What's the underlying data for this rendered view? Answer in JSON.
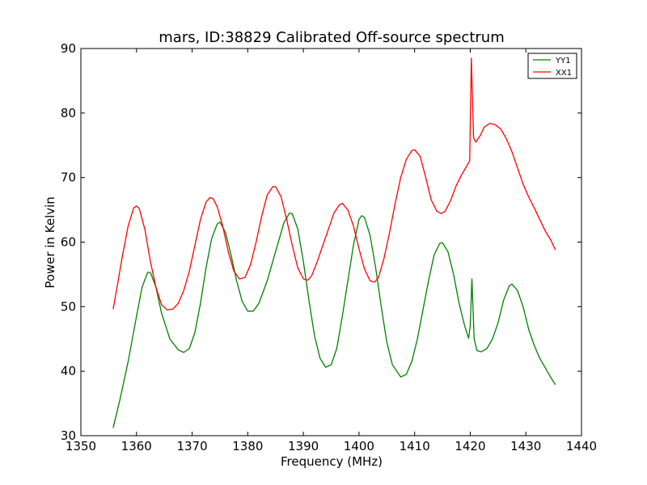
{
  "chart_data": {
    "type": "line",
    "title": "mars, ID:38829 Calibrated Off-source spectrum",
    "xlabel": "Frequency (MHz)",
    "ylabel": "Power in Kelvin",
    "xlim": [
      1350,
      1440
    ],
    "ylim": [
      30,
      90
    ],
    "xticks": [
      1350,
      1360,
      1370,
      1380,
      1390,
      1400,
      1410,
      1420,
      1430,
      1440
    ],
    "yticks": [
      30,
      40,
      50,
      60,
      70,
      80,
      90
    ],
    "grid": false,
    "legend_position": "top-right",
    "series": [
      {
        "name": "YY1",
        "color": "#008000",
        "points": [
          [
            1355.8,
            31.2
          ],
          [
            1357.0,
            35.5
          ],
          [
            1358.5,
            41.5
          ],
          [
            1360.0,
            48.5
          ],
          [
            1361.0,
            53.0
          ],
          [
            1362.0,
            55.3
          ],
          [
            1362.5,
            55.3
          ],
          [
            1363.5,
            53.0
          ],
          [
            1364.5,
            49.0
          ],
          [
            1366.0,
            45.0
          ],
          [
            1367.5,
            43.3
          ],
          [
            1368.5,
            42.9
          ],
          [
            1369.5,
            43.5
          ],
          [
            1370.5,
            46.0
          ],
          [
            1371.5,
            50.5
          ],
          [
            1372.5,
            56.0
          ],
          [
            1373.5,
            60.5
          ],
          [
            1374.5,
            62.8
          ],
          [
            1375.0,
            63.1
          ],
          [
            1376.0,
            61.5
          ],
          [
            1377.0,
            58.0
          ],
          [
            1378.0,
            54.0
          ],
          [
            1379.0,
            50.8
          ],
          [
            1380.0,
            49.3
          ],
          [
            1381.0,
            49.3
          ],
          [
            1382.0,
            50.5
          ],
          [
            1383.5,
            54.0
          ],
          [
            1385.0,
            58.5
          ],
          [
            1386.5,
            63.0
          ],
          [
            1387.5,
            64.5
          ],
          [
            1388.0,
            64.4
          ],
          [
            1389.0,
            62.0
          ],
          [
            1390.0,
            57.0
          ],
          [
            1391.0,
            51.0
          ],
          [
            1392.0,
            45.5
          ],
          [
            1393.0,
            42.0
          ],
          [
            1394.0,
            40.6
          ],
          [
            1395.0,
            41.0
          ],
          [
            1396.0,
            43.5
          ],
          [
            1397.0,
            48.5
          ],
          [
            1398.0,
            54.0
          ],
          [
            1399.0,
            59.5
          ],
          [
            1400.0,
            63.5
          ],
          [
            1400.5,
            64.1
          ],
          [
            1401.0,
            63.8
          ],
          [
            1402.0,
            61.0
          ],
          [
            1403.0,
            56.0
          ],
          [
            1404.0,
            50.0
          ],
          [
            1405.0,
            44.5
          ],
          [
            1406.0,
            41.0
          ],
          [
            1407.5,
            39.1
          ],
          [
            1408.5,
            39.5
          ],
          [
            1409.5,
            41.5
          ],
          [
            1410.5,
            45.0
          ],
          [
            1411.5,
            49.5
          ],
          [
            1412.5,
            54.0
          ],
          [
            1413.5,
            58.0
          ],
          [
            1414.5,
            59.8
          ],
          [
            1415.0,
            59.9
          ],
          [
            1416.0,
            58.5
          ],
          [
            1417.0,
            55.0
          ],
          [
            1418.0,
            50.5
          ],
          [
            1419.0,
            47.0
          ],
          [
            1419.7,
            45.1
          ],
          [
            1420.0,
            47.0
          ],
          [
            1420.3,
            54.3
          ],
          [
            1420.7,
            45.0
          ],
          [
            1421.2,
            43.2
          ],
          [
            1422.0,
            43.0
          ],
          [
            1423.0,
            43.5
          ],
          [
            1424.0,
            45.0
          ],
          [
            1425.0,
            47.5
          ],
          [
            1426.0,
            51.0
          ],
          [
            1427.0,
            53.2
          ],
          [
            1427.5,
            53.5
          ],
          [
            1428.5,
            52.5
          ],
          [
            1429.5,
            50.0
          ],
          [
            1430.5,
            46.5
          ],
          [
            1431.5,
            44.0
          ],
          [
            1432.5,
            42.0
          ],
          [
            1433.5,
            40.5
          ],
          [
            1434.5,
            39.0
          ],
          [
            1435.3,
            37.9
          ]
        ]
      },
      {
        "name": "XX1",
        "color": "#ff0000",
        "points": [
          [
            1355.8,
            49.6
          ],
          [
            1356.5,
            53.0
          ],
          [
            1357.5,
            58.0
          ],
          [
            1358.5,
            62.5
          ],
          [
            1359.5,
            65.3
          ],
          [
            1360.0,
            65.6
          ],
          [
            1360.5,
            65.2
          ],
          [
            1361.5,
            62.0
          ],
          [
            1362.5,
            57.0
          ],
          [
            1363.5,
            53.0
          ],
          [
            1364.5,
            50.3
          ],
          [
            1365.5,
            49.5
          ],
          [
            1366.5,
            49.6
          ],
          [
            1367.5,
            50.5
          ],
          [
            1368.5,
            52.5
          ],
          [
            1369.5,
            55.5
          ],
          [
            1370.5,
            59.5
          ],
          [
            1371.5,
            63.5
          ],
          [
            1372.5,
            66.2
          ],
          [
            1373.2,
            66.9
          ],
          [
            1373.8,
            66.7
          ],
          [
            1374.5,
            65.5
          ],
          [
            1375.5,
            62.5
          ],
          [
            1376.5,
            58.5
          ],
          [
            1377.5,
            55.5
          ],
          [
            1378.5,
            54.3
          ],
          [
            1379.5,
            54.5
          ],
          [
            1380.5,
            56.5
          ],
          [
            1381.5,
            60.0
          ],
          [
            1382.5,
            64.0
          ],
          [
            1383.5,
            67.3
          ],
          [
            1384.5,
            68.6
          ],
          [
            1385.0,
            68.6
          ],
          [
            1386.0,
            67.0
          ],
          [
            1387.0,
            63.5
          ],
          [
            1388.0,
            59.5
          ],
          [
            1389.0,
            56.0
          ],
          [
            1390.0,
            54.3
          ],
          [
            1390.8,
            54.1
          ],
          [
            1391.5,
            54.8
          ],
          [
            1392.5,
            57.0
          ],
          [
            1393.5,
            59.5
          ],
          [
            1394.5,
            62.0
          ],
          [
            1395.5,
            64.5
          ],
          [
            1396.5,
            65.8
          ],
          [
            1397.0,
            66.0
          ],
          [
            1398.0,
            65.0
          ],
          [
            1399.0,
            62.5
          ],
          [
            1400.0,
            59.0
          ],
          [
            1401.0,
            55.8
          ],
          [
            1402.0,
            54.0
          ],
          [
            1402.8,
            53.8
          ],
          [
            1403.5,
            54.5
          ],
          [
            1404.5,
            57.5
          ],
          [
            1405.5,
            61.5
          ],
          [
            1406.5,
            66.0
          ],
          [
            1407.5,
            70.0
          ],
          [
            1408.5,
            72.8
          ],
          [
            1409.5,
            74.2
          ],
          [
            1410.0,
            74.3
          ],
          [
            1411.0,
            73.3
          ],
          [
            1412.0,
            70.0
          ],
          [
            1413.0,
            66.5
          ],
          [
            1414.0,
            64.8
          ],
          [
            1414.8,
            64.4
          ],
          [
            1415.5,
            64.8
          ],
          [
            1416.5,
            66.5
          ],
          [
            1417.5,
            68.8
          ],
          [
            1418.5,
            70.5
          ],
          [
            1419.5,
            72.0
          ],
          [
            1419.9,
            72.6
          ],
          [
            1420.2,
            88.5
          ],
          [
            1420.6,
            76.2
          ],
          [
            1421.0,
            75.5
          ],
          [
            1421.8,
            76.5
          ],
          [
            1422.5,
            77.8
          ],
          [
            1423.5,
            78.4
          ],
          [
            1424.5,
            78.2
          ],
          [
            1425.5,
            77.5
          ],
          [
            1426.5,
            76.0
          ],
          [
            1427.5,
            74.0
          ],
          [
            1428.5,
            71.5
          ],
          [
            1429.5,
            69.0
          ],
          [
            1430.5,
            67.0
          ],
          [
            1431.5,
            65.3
          ],
          [
            1432.5,
            63.5
          ],
          [
            1433.5,
            61.7
          ],
          [
            1434.5,
            60.3
          ],
          [
            1435.3,
            58.8
          ]
        ]
      }
    ]
  }
}
